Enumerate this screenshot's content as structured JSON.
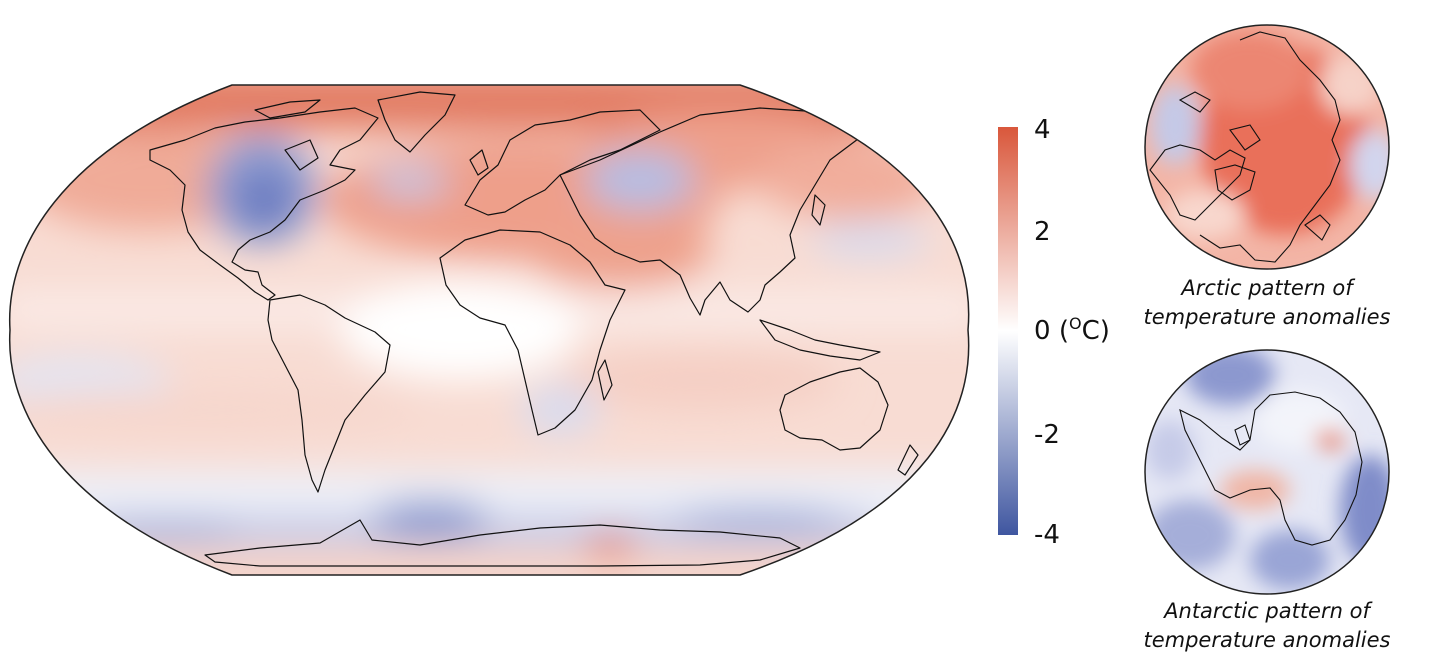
{
  "main_map": {
    "projection": "Robinson",
    "colors": {
      "warm": "#d9573b",
      "neutral": "#ffffff",
      "cool": "#3f56a0",
      "coastline": "#111111",
      "frame": "#222222"
    }
  },
  "colorbar": {
    "ticks": [
      "4",
      "2",
      "0",
      "-2",
      "-4"
    ],
    "tick_values": [
      4,
      2,
      0,
      -2,
      -4
    ],
    "unit_open": "(",
    "unit_degree": "O",
    "unit_letter": "C)",
    "top_color": "#d9573b",
    "mid_color": "#ffffff",
    "bottom_color": "#3f56a0"
  },
  "insets": [
    {
      "id": "arctic",
      "caption_line1": "Arctic pattern of",
      "caption_line2": "temperature anomalies"
    },
    {
      "id": "antarctic",
      "caption_line1": "Antarctic pattern of",
      "caption_line2": "temperature anomalies"
    }
  ]
}
